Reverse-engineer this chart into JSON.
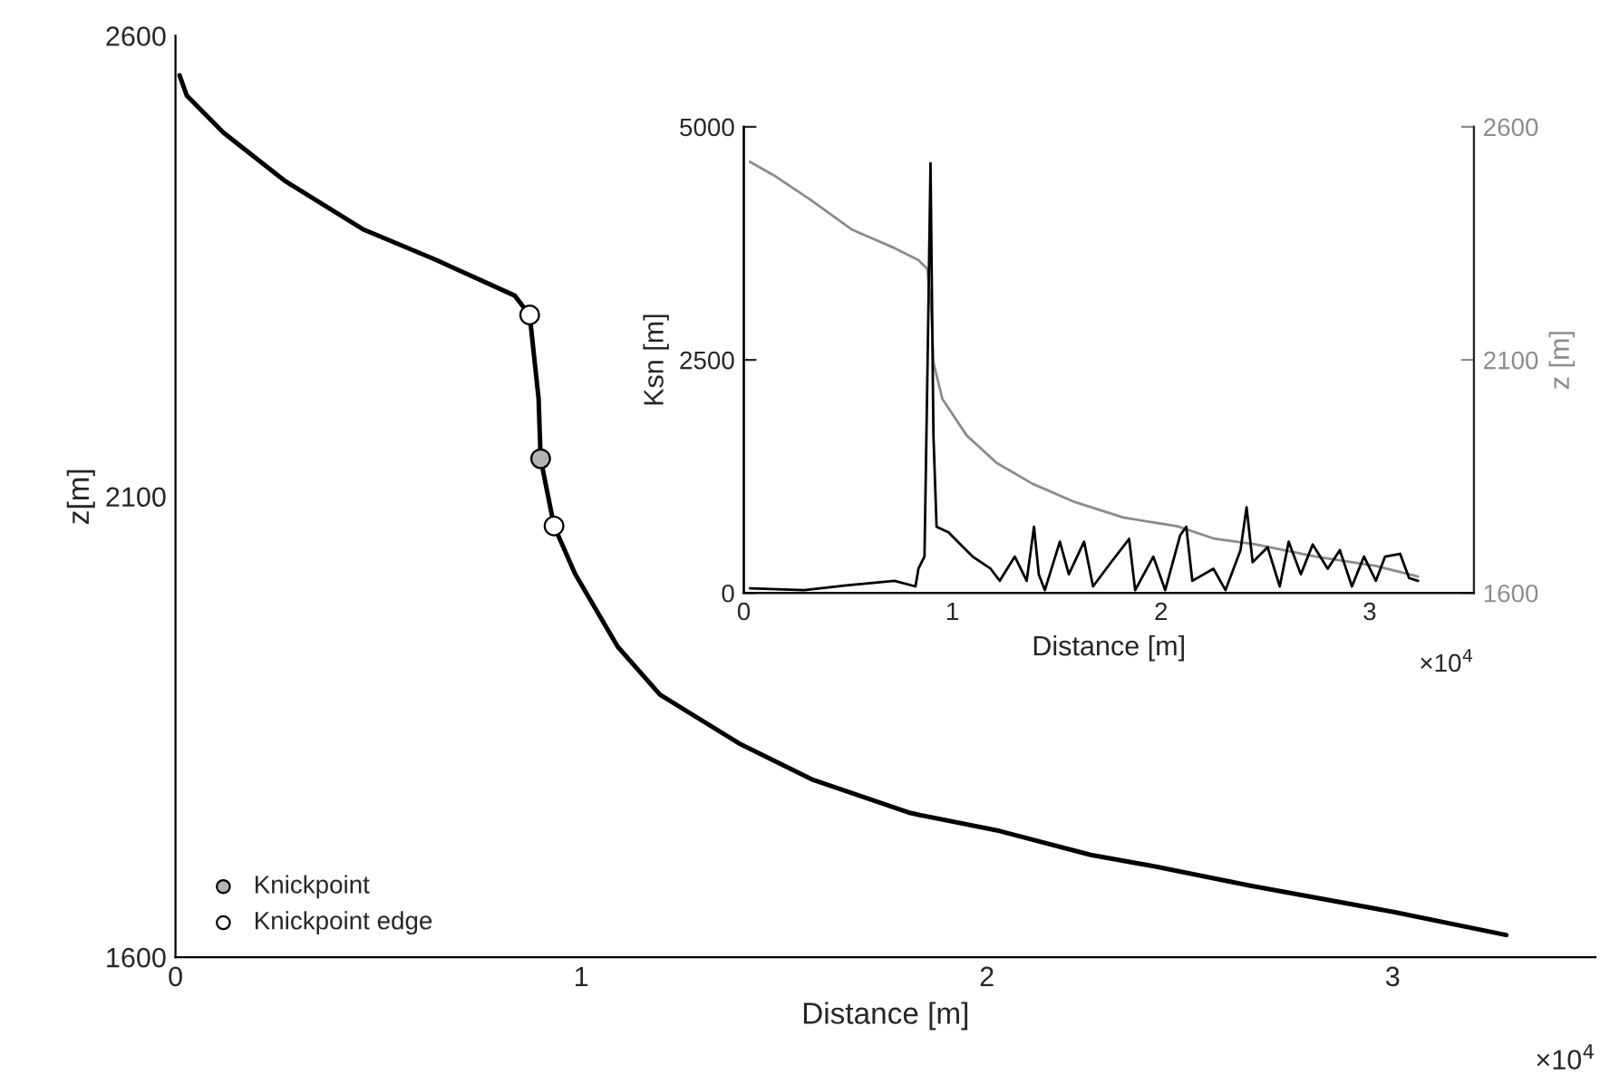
{
  "chart_data": [
    {
      "type": "line",
      "xlabel": "Distance [m]",
      "ylabel": "z[m]",
      "xlim": [
        0,
        3.5
      ],
      "ylim": [
        1600,
        2600
      ],
      "xticks": [
        0,
        1,
        2,
        3
      ],
      "yticks": [
        1600,
        2100,
        2600
      ],
      "grid": false,
      "legend": "bottom left",
      "annotations": [
        "×10$^{4}$"
      ],
      "series": [
        {
          "color": "#000000",
          "x": [
            0.01,
            0.028,
            0.118,
            0.268,
            0.462,
            0.641,
            0.836,
            0.873,
            0.895,
            0.9,
            0.933,
            0.985,
            1.09,
            1.194,
            1.389,
            1.568,
            1.807,
            1.837,
            2.031,
            2.256,
            2.42,
            2.644,
            3.003,
            3.28
          ],
          "values": [
            2557,
            2535,
            2495,
            2443,
            2390,
            2357,
            2318,
            2297,
            2206,
            2141,
            2068,
            2016,
            1937,
            1885,
            1832,
            1793,
            1757,
            1754,
            1737,
            1711,
            1698,
            1678,
            1649,
            1624
          ]
        },
        {
          "type": "scatter",
          "name": "Knickpoint",
          "color": "#b3b3b3",
          "marker": "circle",
          "x": [
            0.9
          ],
          "values": [
            2141
          ]
        },
        {
          "type": "scatter",
          "name": "Knickpoint edge",
          "color": "#ffffff",
          "marker": "circle",
          "x": [
            0.873,
            0.933
          ],
          "values": [
            2297,
            2068
          ]
        }
      ]
    },
    {
      "type": "line",
      "xlabel": "Distance [m]",
      "ylabel": "Ksn [m]",
      "y2label": "z [m]",
      "xlim": [
        0,
        3.5
      ],
      "ylim": [
        0,
        5000
      ],
      "y2lim": [
        1600,
        2600
      ],
      "xticks": [
        0,
        1,
        2,
        3
      ],
      "yticks": [
        0,
        2500,
        5000
      ],
      "y2ticks": [
        1600,
        2100,
        2600
      ],
      "grid": false,
      "annotations": [
        "×10$^{4}$"
      ],
      "series": [
        {
          "color": "#8c8c8c",
          "axis": "y2",
          "x": [
            0.029,
            0.144,
            0.318,
            0.52,
            0.722,
            0.837,
            0.88,
            0.9,
            0.909,
            0.952,
            1.068,
            1.212,
            1.385,
            1.587,
            1.818,
            2.078,
            2.251,
            2.453,
            2.742,
            3.03,
            3.232
          ],
          "values": [
            2525,
            2496,
            2444,
            2379,
            2340,
            2314,
            2295,
            2197,
            2094,
            2016,
            1938,
            1879,
            1834,
            1795,
            1762,
            1743,
            1717,
            1704,
            1678,
            1658,
            1635
          ]
        },
        {
          "color": "#000000",
          "x": [
            0.029,
            0.289,
            0.491,
            0.722,
            0.823,
            0.837,
            0.866,
            0.88,
            0.895,
            0.909,
            0.924,
            0.981,
            1.039,
            1.097,
            1.183,
            1.227,
            1.299,
            1.356,
            1.391,
            1.414,
            1.443,
            1.515,
            1.558,
            1.631,
            1.674,
            1.761,
            1.847,
            1.876,
            1.963,
            2.02,
            2.092,
            2.121,
            2.15,
            2.251,
            2.309,
            2.381,
            2.41,
            2.439,
            2.511,
            2.569,
            2.612,
            2.67,
            2.727,
            2.799,
            2.857,
            2.915,
            2.973,
            3.03,
            3.074,
            3.146,
            3.189,
            3.232
          ],
          "values": [
            50,
            30,
            80,
            130,
            70,
            260,
            390,
            2340,
            4610,
            1690,
            710,
            650,
            520,
            390,
            260,
            130,
            390,
            130,
            710,
            200,
            30,
            550,
            200,
            550,
            70,
            330,
            580,
            30,
            390,
            30,
            620,
            710,
            130,
            260,
            30,
            460,
            920,
            330,
            490,
            70,
            550,
            200,
            520,
            260,
            460,
            70,
            390,
            130,
            390,
            420,
            160,
            130
          ]
        }
      ]
    }
  ]
}
